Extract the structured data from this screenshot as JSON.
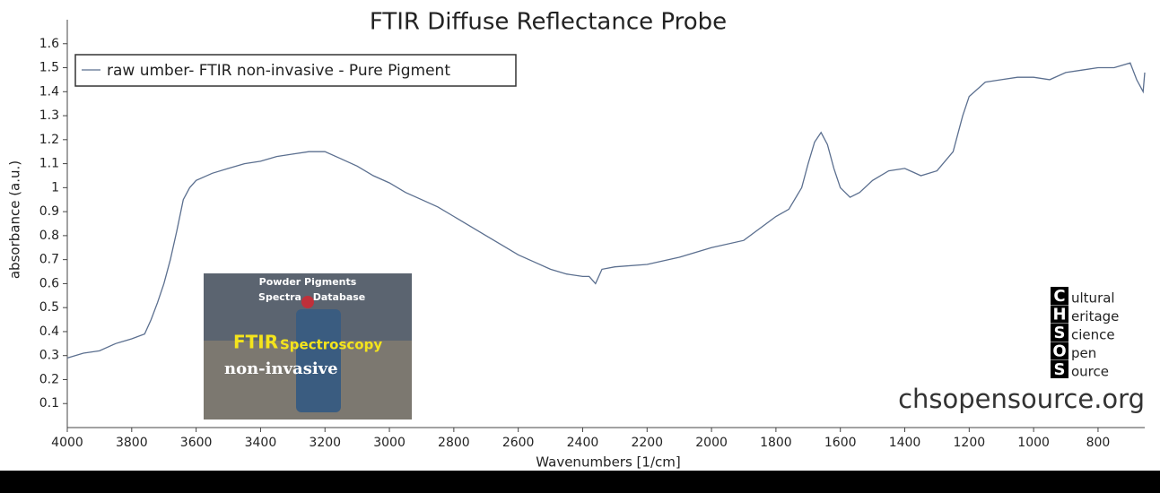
{
  "chart_data": {
    "type": "line",
    "title": "FTIR Diffuse Reflectance Probe",
    "x_label": "Wavenumbers [1/cm]",
    "y_label": "absorbance (a.u.)",
    "xlim": [
      4000,
      655
    ],
    "xticks": [
      4000,
      3800,
      3600,
      3400,
      3200,
      3000,
      2800,
      2600,
      2400,
      2200,
      2000,
      1800,
      1600,
      1400,
      1200,
      1000,
      800
    ],
    "ylim": [
      0,
      1.7
    ],
    "yticks": [
      0.1,
      0.2,
      0.3,
      0.4,
      0.5,
      0.6,
      0.7,
      0.8,
      0.9,
      1,
      1.1,
      1.2,
      1.3,
      1.4,
      1.5,
      1.6
    ],
    "legend": "top-left",
    "x": [
      4000,
      3950,
      3900,
      3850,
      3800,
      3760,
      3740,
      3720,
      3700,
      3680,
      3660,
      3640,
      3620,
      3600,
      3550,
      3500,
      3450,
      3400,
      3350,
      3300,
      3250,
      3200,
      3150,
      3100,
      3050,
      3000,
      2950,
      2900,
      2850,
      2800,
      2750,
      2700,
      2650,
      2600,
      2550,
      2500,
      2450,
      2400,
      2380,
      2360,
      2340,
      2300,
      2200,
      2100,
      2000,
      1900,
      1850,
      1800,
      1760,
      1720,
      1700,
      1680,
      1660,
      1640,
      1620,
      1600,
      1570,
      1540,
      1500,
      1450,
      1400,
      1350,
      1300,
      1250,
      1220,
      1200,
      1150,
      1100,
      1050,
      1000,
      950,
      900,
      850,
      800,
      750,
      700,
      680,
      660,
      655
    ],
    "series": [
      {
        "name": "raw umber- FTIR non-invasive - Pure Pigment",
        "color": "#5b6f8f",
        "values": [
          0.29,
          0.31,
          0.32,
          0.35,
          0.37,
          0.39,
          0.45,
          0.52,
          0.6,
          0.7,
          0.82,
          0.95,
          1.0,
          1.03,
          1.06,
          1.08,
          1.1,
          1.11,
          1.13,
          1.14,
          1.15,
          1.15,
          1.12,
          1.09,
          1.05,
          1.02,
          0.98,
          0.95,
          0.92,
          0.88,
          0.84,
          0.8,
          0.76,
          0.72,
          0.69,
          0.66,
          0.64,
          0.63,
          0.63,
          0.6,
          0.66,
          0.67,
          0.68,
          0.71,
          0.75,
          0.78,
          0.83,
          0.88,
          0.91,
          1.0,
          1.1,
          1.19,
          1.23,
          1.18,
          1.08,
          1.0,
          0.96,
          0.98,
          1.03,
          1.07,
          1.08,
          1.05,
          1.07,
          1.15,
          1.3,
          1.38,
          1.44,
          1.45,
          1.46,
          1.46,
          1.45,
          1.48,
          1.49,
          1.5,
          1.5,
          1.52,
          1.45,
          1.4,
          1.48
        ]
      }
    ]
  },
  "inset": {
    "line1": "Powder Pigments",
    "line2": "Spectra",
    "line3": "Database",
    "brand": "FTIR",
    "brand_rest": "Spectroscopy",
    "tag": "non-invasive"
  },
  "logo": [
    {
      "letter": "C",
      "rest": "ultural"
    },
    {
      "letter": "H",
      "rest": "eritage"
    },
    {
      "letter": "S",
      "rest": "cience"
    },
    {
      "letter": "O",
      "rest": "pen"
    },
    {
      "letter": "S",
      "rest": "ource"
    }
  ],
  "website": "chsopensource.org"
}
